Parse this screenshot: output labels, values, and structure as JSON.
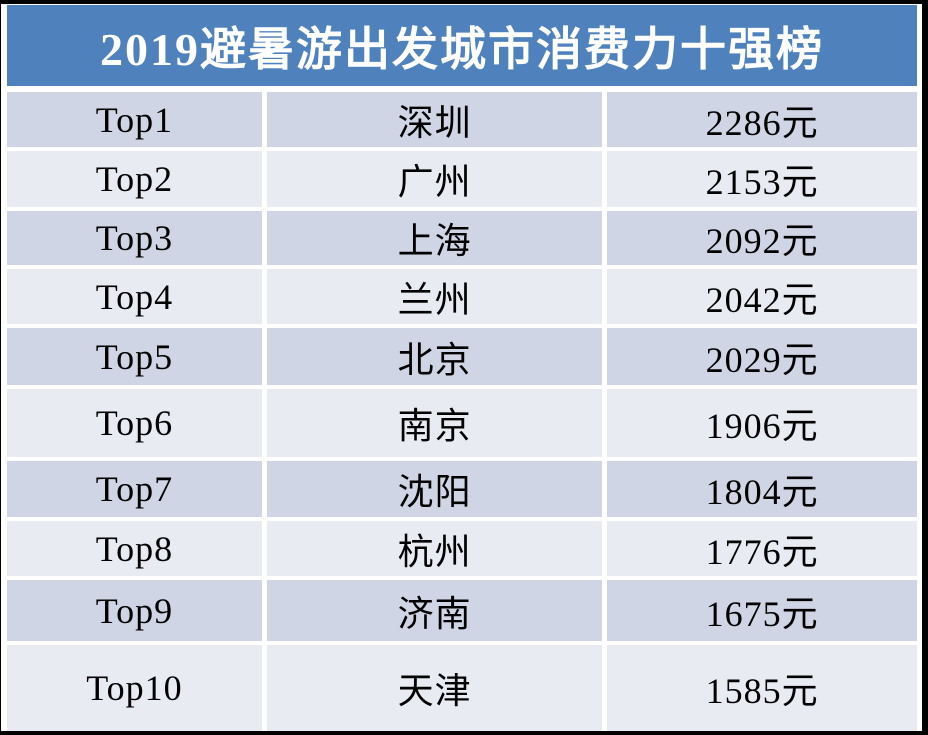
{
  "title": "2019避暑游出发城市消费力十强榜",
  "colors": {
    "frame_border": "#000000",
    "header_bg": "#4f81bd",
    "title_text": "#ffffff",
    "row_odd_bg": "#cfd5e4",
    "row_even_bg": "#e9ebf3",
    "cell_text": "#000000",
    "gutter": "#ffffff"
  },
  "table": {
    "rows": [
      {
        "rank": "Top1",
        "city": "深圳",
        "price": "2286元"
      },
      {
        "rank": "Top2",
        "city": "广州",
        "price": "2153元"
      },
      {
        "rank": "Top3",
        "city": "上海",
        "price": "2092元"
      },
      {
        "rank": "Top4",
        "city": "兰州",
        "price": "2042元"
      },
      {
        "rank": "Top5",
        "city": "北京",
        "price": "2029元"
      },
      {
        "rank": "Top6",
        "city": "南京",
        "price": "1906元"
      },
      {
        "rank": "Top7",
        "city": "沈阳",
        "price": "1804元"
      },
      {
        "rank": "Top8",
        "city": "杭州",
        "price": "1776元"
      },
      {
        "rank": "Top9",
        "city": "济南",
        "price": "1675元"
      },
      {
        "rank": "Top10",
        "city": "天津",
        "price": "1585元"
      }
    ]
  },
  "chart_data": {
    "type": "table",
    "title": "2019避暑游出发城市消费力十强榜",
    "unit": "元",
    "categories": [
      "Top1",
      "Top2",
      "Top3",
      "Top4",
      "Top5",
      "Top6",
      "Top7",
      "Top8",
      "Top9",
      "Top10"
    ],
    "cities": [
      "深圳",
      "广州",
      "上海",
      "兰州",
      "北京",
      "南京",
      "沈阳",
      "杭州",
      "济南",
      "天津"
    ],
    "values": [
      2286,
      2153,
      2092,
      2042,
      2029,
      1906,
      1804,
      1776,
      1675,
      1585
    ]
  }
}
